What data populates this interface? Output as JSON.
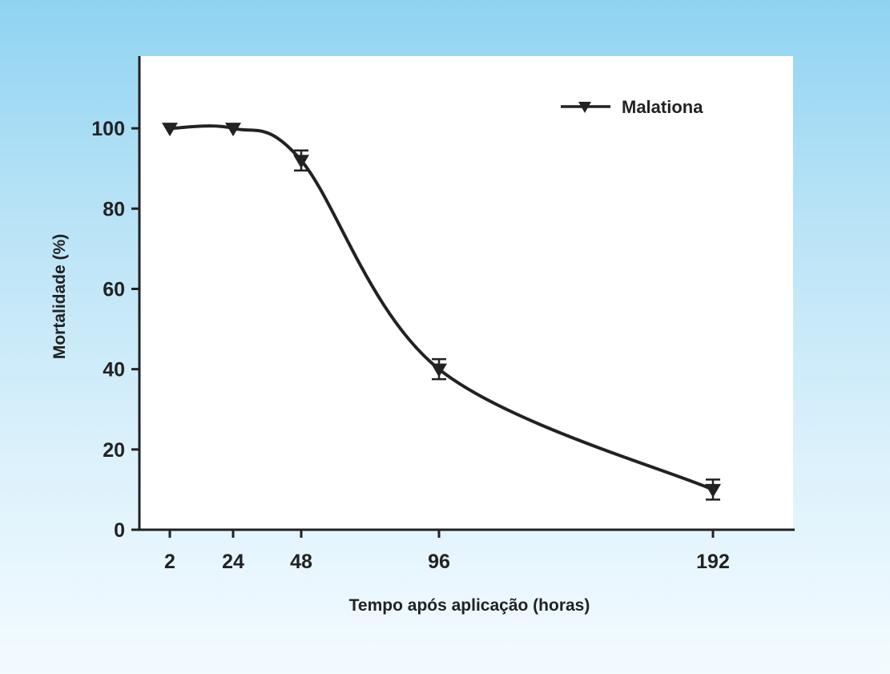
{
  "colors": {
    "background_top": "#8fd3f1",
    "background_bottom": "#f4fbff",
    "plot_area": "#ffffff",
    "line": "#222222"
  },
  "chart_data": {
    "type": "line",
    "title": "",
    "xlabel": "Tempo após aplicação (horas)",
    "ylabel": "Mortalidade (%)",
    "x_categories": [
      "2",
      "24",
      "48",
      "96",
      "192"
    ],
    "ylim": [
      0,
      118
    ],
    "yticks": [
      0,
      20,
      40,
      60,
      80,
      100
    ],
    "grid": false,
    "legend_position": "top-right",
    "series": [
      {
        "name": "Malationa",
        "marker": "triangle-down",
        "smooth": true,
        "values": [
          100,
          100,
          92,
          40,
          10
        ],
        "error": [
          0,
          0,
          2.5,
          2.5,
          2.5
        ]
      }
    ]
  }
}
